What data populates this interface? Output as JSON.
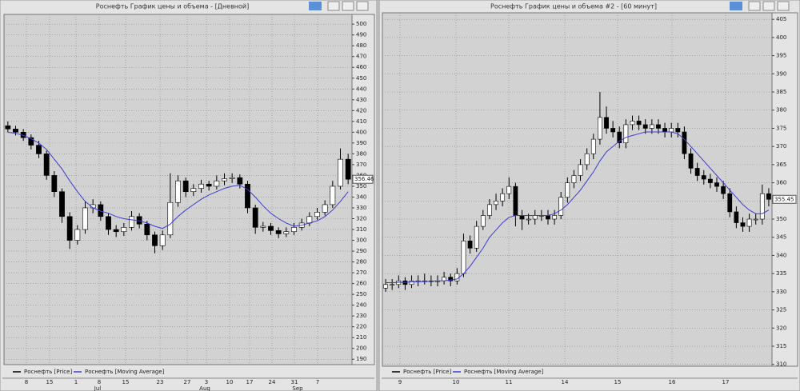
{
  "chart_data": [
    {
      "type": "candlestick",
      "title": "Роснефть График цены и объема - [Дневной]",
      "ylim": [
        185,
        509
      ],
      "yticks": [
        190,
        200,
        210,
        220,
        230,
        240,
        250,
        260,
        270,
        280,
        290,
        300,
        310,
        320,
        330,
        340,
        350,
        360,
        370,
        380,
        390,
        400,
        410,
        420,
        430,
        440,
        450,
        460,
        470,
        480,
        490,
        500
      ],
      "x_labels": [
        "8",
        "15",
        "1",
        "8",
        "15",
        "23",
        "27",
        "3",
        "10",
        "17",
        "24",
        "31",
        "7"
      ],
      "month_labels": [
        "Jul",
        "Aug",
        "Sep"
      ],
      "last_price": 356.46,
      "grid": true,
      "series": [
        {
          "name": "Роснефть [Price]",
          "color": "#000000",
          "candles": [
            [
              406,
              410,
              400,
              403
            ],
            [
              403,
              406,
              397,
              400
            ],
            [
              400,
              403,
              392,
              395
            ],
            [
              395,
              398,
              384,
              388
            ],
            [
              388,
              392,
              376,
              380
            ],
            [
              380,
              383,
              356,
              360
            ],
            [
              360,
              364,
              340,
              345
            ],
            [
              345,
              348,
              316,
              322
            ],
            [
              322,
              326,
              292,
              300
            ],
            [
              300,
              314,
              296,
              310
            ],
            [
              310,
              336,
              306,
              330
            ],
            [
              330,
              338,
              325,
              333
            ],
            [
              333,
              336,
              318,
              322
            ],
            [
              322,
              325,
              305,
              310
            ],
            [
              310,
              314,
              303,
              308
            ],
            [
              308,
              316,
              304,
              312
            ],
            [
              312,
              327,
              309,
              322
            ],
            [
              322,
              325,
              311,
              315
            ],
            [
              315,
              318,
              300,
              305
            ],
            [
              305,
              308,
              288,
              295
            ],
            [
              295,
              309,
              291,
              305
            ],
            [
              305,
              362,
              302,
              335
            ],
            [
              335,
              360,
              331,
              355
            ],
            [
              355,
              358,
              340,
              345
            ],
            [
              345,
              352,
              341,
              348
            ],
            [
              348,
              356,
              344,
              352
            ],
            [
              352,
              355,
              346,
              350
            ],
            [
              350,
              360,
              347,
              355
            ],
            [
              355,
              362,
              351,
              357
            ],
            [
              357,
              362,
              353,
              358
            ],
            [
              358,
              361,
              348,
              352
            ],
            [
              352,
              355,
              325,
              330
            ],
            [
              330,
              333,
              306,
              312
            ],
            [
              312,
              317,
              308,
              313
            ],
            [
              313,
              316,
              305,
              309
            ],
            [
              309,
              312,
              302,
              306
            ],
            [
              306,
              312,
              303,
              308
            ],
            [
              308,
              316,
              305,
              312
            ],
            [
              312,
              320,
              309,
              316
            ],
            [
              316,
              326,
              313,
              322
            ],
            [
              322,
              330,
              319,
              326
            ],
            [
              326,
              337,
              323,
              333
            ],
            [
              333,
              355,
              330,
              350
            ],
            [
              350,
              385,
              347,
              375
            ],
            [
              375,
              380,
              352,
              356.46
            ]
          ]
        },
        {
          "name": "Роснефть [Moving Average]",
          "color": "#3c3cd2",
          "values": [
            400,
            399,
            397,
            394,
            390,
            384,
            375,
            366,
            355,
            345,
            336,
            330,
            327,
            325,
            322,
            320,
            319,
            318,
            316,
            313,
            311,
            315,
            322,
            328,
            333,
            338,
            342,
            345,
            348,
            350,
            351,
            347,
            340,
            332,
            325,
            320,
            316,
            313,
            314,
            316,
            318,
            322,
            328,
            336,
            345
          ]
        }
      ]
    },
    {
      "type": "candlestick",
      "title": "Роснефть График цены и объема #2 - [60 минут]",
      "ylim": [
        309.5,
        406.8
      ],
      "yticks": [
        310,
        315,
        320,
        325,
        330,
        335,
        340,
        345,
        350,
        355,
        360,
        365,
        370,
        375,
        380,
        385,
        390,
        395,
        400,
        405
      ],
      "x_labels": [
        "9",
        "10",
        "11",
        "14",
        "15",
        "16",
        "17"
      ],
      "last_price": 355.45,
      "grid": true,
      "series": [
        {
          "name": "Роснефть [Price]",
          "color": "#000000",
          "candles": [
            [
              331,
              333.5,
              330,
              332
            ],
            [
              332,
              333.5,
              330.5,
              332
            ],
            [
              332,
              334.5,
              331,
              333
            ],
            [
              333,
              334,
              330.5,
              332
            ],
            [
              332,
              334.5,
              331,
              333
            ],
            [
              333,
              334.5,
              331.5,
              333
            ],
            [
              333,
              335,
              332,
              333
            ],
            [
              333,
              334.5,
              331.5,
              333
            ],
            [
              333,
              334.5,
              331.5,
              333
            ],
            [
              333,
              335.5,
              332,
              334
            ],
            [
              334,
              335,
              331.5,
              333
            ],
            [
              333,
              336.5,
              332,
              335
            ],
            [
              335,
              346,
              334,
              344
            ],
            [
              344,
              345.5,
              340.5,
              342
            ],
            [
              342,
              349.5,
              341,
              348
            ],
            [
              348,
              352.5,
              347,
              351
            ],
            [
              351,
              355.5,
              350,
              354
            ],
            [
              354,
              357,
              352.5,
              355
            ],
            [
              355,
              358.5,
              353.5,
              357
            ],
            [
              357,
              361.5,
              355.5,
              359
            ],
            [
              359,
              360,
              348,
              351
            ],
            [
              351,
              352.5,
              347,
              350
            ],
            [
              350,
              351.5,
              348.5,
              350
            ],
            [
              350,
              352.5,
              348.5,
              351
            ],
            [
              351,
              352.5,
              349.5,
              351
            ],
            [
              351,
              352.5,
              348.5,
              350
            ],
            [
              350,
              352.5,
              348.5,
              351
            ],
            [
              351,
              357.5,
              350,
              356
            ],
            [
              356,
              361.5,
              354.5,
              360
            ],
            [
              360,
              363.5,
              358.5,
              362
            ],
            [
              362,
              366.5,
              360.5,
              365
            ],
            [
              365,
              369.5,
              363.5,
              368
            ],
            [
              368,
              373.5,
              366.5,
              372
            ],
            [
              372,
              385,
              370.5,
              378
            ],
            [
              378,
              381,
              373.5,
              375
            ],
            [
              375,
              377,
              372.5,
              374
            ],
            [
              374,
              375.5,
              369.5,
              371
            ],
            [
              371,
              377.5,
              369.5,
              376
            ],
            [
              376,
              378.5,
              374.5,
              377
            ],
            [
              377,
              378.5,
              374.5,
              376
            ],
            [
              376,
              377.5,
              373.5,
              375
            ],
            [
              375,
              377.5,
              373.5,
              376
            ],
            [
              376,
              377.5,
              373.5,
              375
            ],
            [
              375,
              376.5,
              372.5,
              374
            ],
            [
              374,
              376.5,
              372.5,
              375
            ],
            [
              375,
              376.5,
              372.5,
              374
            ],
            [
              374,
              375.5,
              366.5,
              368
            ],
            [
              368,
              369.5,
              362.5,
              364
            ],
            [
              364,
              365.5,
              360.5,
              362
            ],
            [
              362,
              363.5,
              359.5,
              361
            ],
            [
              361,
              362.5,
              358.5,
              360
            ],
            [
              360,
              361.5,
              357.5,
              359
            ],
            [
              359,
              360.5,
              355.5,
              357
            ],
            [
              357,
              358.5,
              350.5,
              352
            ],
            [
              352,
              353.5,
              347.5,
              349
            ],
            [
              349,
              350.5,
              346.5,
              348
            ],
            [
              348,
              351.5,
              346.5,
              350
            ],
            [
              350,
              351.5,
              348.5,
              350
            ],
            [
              350,
              359.5,
              348.5,
              357
            ],
            [
              357,
              358.5,
              353.5,
              355.45
            ]
          ]
        },
        {
          "name": "Роснефть [Moving Average]",
          "color": "#3c3cd2",
          "values": [
            332.5,
            332.5,
            332.6,
            332.6,
            332.7,
            332.8,
            332.8,
            332.9,
            333,
            333,
            333.2,
            333.5,
            335,
            337,
            339.5,
            342,
            345,
            347,
            349,
            350.5,
            351,
            351,
            351,
            351,
            351,
            351,
            351.5,
            352.5,
            354,
            356,
            358,
            360.5,
            363,
            366,
            368.5,
            370,
            371.5,
            372.5,
            373,
            373.5,
            374,
            374,
            374,
            374,
            374,
            373.5,
            372,
            370,
            368,
            366,
            364,
            362,
            360,
            358,
            356,
            354,
            352.5,
            351.5,
            351.5,
            352.5
          ]
        }
      ]
    }
  ]
}
